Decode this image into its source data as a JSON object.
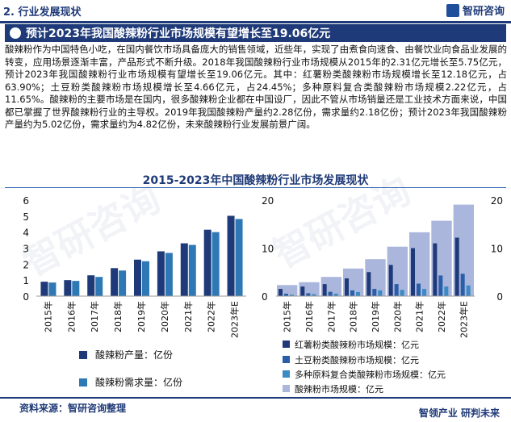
{
  "header": {
    "section_label": "2. 行业发展现状",
    "brand": "智研咨询"
  },
  "title": "预计2023年我国酸辣粉行业市场规模有望增长至19.06亿元",
  "paragraph": "酸辣粉作为中国特色小吃，在国内餐饮市场具备庞大的销售领域，近些年，实现了由煮食向速食、由餐饮业向食品业发展的转变，应用场景逐渐丰富，产品形式不断升级。2018年我国酸辣粉行业市场规模从2015年的2.31亿元增长至5.75亿元，预计2023年我国酸辣粉行业市场规模有望增长至19.06亿元。其中：红薯粉类酸辣粉市场规模增长至12.18亿元，占63.90%；土豆粉类酸辣粉市场规模增长至4.66亿元，占24.45%；多种原料复合类酸辣粉市场规模2.22亿元，占11.65%。酸辣粉的主要市场是在国内，很多酸辣粉企业都在中国设厂，因此不管从市场销量还是工业技术方面来说，中国都已掌握了世界酸辣粉行业的主导权。2019年我国酸辣粉产量约2.28亿份，需求量约2.18亿份；预计2023年我国酸辣粉产量约为5.02亿份，需求量约为4.82亿份，未来酸辣粉行业发展前景广阔。",
  "chart_heading": "2015-2023年中国酸辣粉行业市场发展现状",
  "source": "资料来源：智研咨询整理",
  "footer_brand": "智领产业  研判未来",
  "watermark": "智研咨询",
  "chart_data": [
    {
      "type": "bar",
      "categories": [
        "2015年",
        "2016年",
        "2017年",
        "2018年",
        "2019年",
        "2020年",
        "2021年",
        "2022年",
        "2023年E"
      ],
      "series": [
        {
          "name": "酸辣粉产量：亿份",
          "color": "#1f3a78",
          "values": [
            0.9,
            1.0,
            1.3,
            1.75,
            2.28,
            2.8,
            3.3,
            4.15,
            5.02
          ]
        },
        {
          "name": "酸辣粉需求量：亿份",
          "color": "#2e79b5",
          "values": [
            0.85,
            0.95,
            1.2,
            1.6,
            2.18,
            2.7,
            3.2,
            4.0,
            4.82
          ]
        }
      ],
      "ylim": [
        0,
        6
      ],
      "yticks": [
        0,
        1,
        2,
        3,
        4,
        5,
        6
      ],
      "grid": false,
      "legend": "bottom"
    },
    {
      "type": "bar",
      "categories": [
        "2015年",
        "2016年",
        "2017年",
        "2018年",
        "2019年",
        "2020年",
        "2021年",
        "2022年",
        "2023年E"
      ],
      "series": [
        {
          "name": "红薯粉类酸辣粉市场规模：亿元",
          "color": "#1f3a78",
          "values": [
            1.5,
            2.0,
            2.5,
            3.7,
            5.0,
            6.5,
            10.0,
            11.0,
            12.18
          ]
        },
        {
          "name": "土豆粉类酸辣粉市场规模：亿元",
          "color": "#2a5ea8",
          "values": [
            0.5,
            0.6,
            0.9,
            1.2,
            1.5,
            2.5,
            2.6,
            4.3,
            4.66
          ]
        },
        {
          "name": "多种原料复合类酸辣粉市场规模：亿元",
          "color": "#3a8ac4",
          "values": [
            0.3,
            0.4,
            0.5,
            0.85,
            1.2,
            1.3,
            1.5,
            2.0,
            2.22
          ]
        },
        {
          "name": "酸辣粉市场规模：亿元",
          "color": "#aab6dc",
          "values": [
            2.31,
            2.9,
            4.0,
            5.75,
            7.7,
            10.3,
            13.3,
            15.7,
            19.06
          ]
        }
      ],
      "ylim": [
        0,
        20
      ],
      "yticks": [
        0,
        10,
        20
      ],
      "grid": false,
      "legend": "bottom"
    }
  ]
}
